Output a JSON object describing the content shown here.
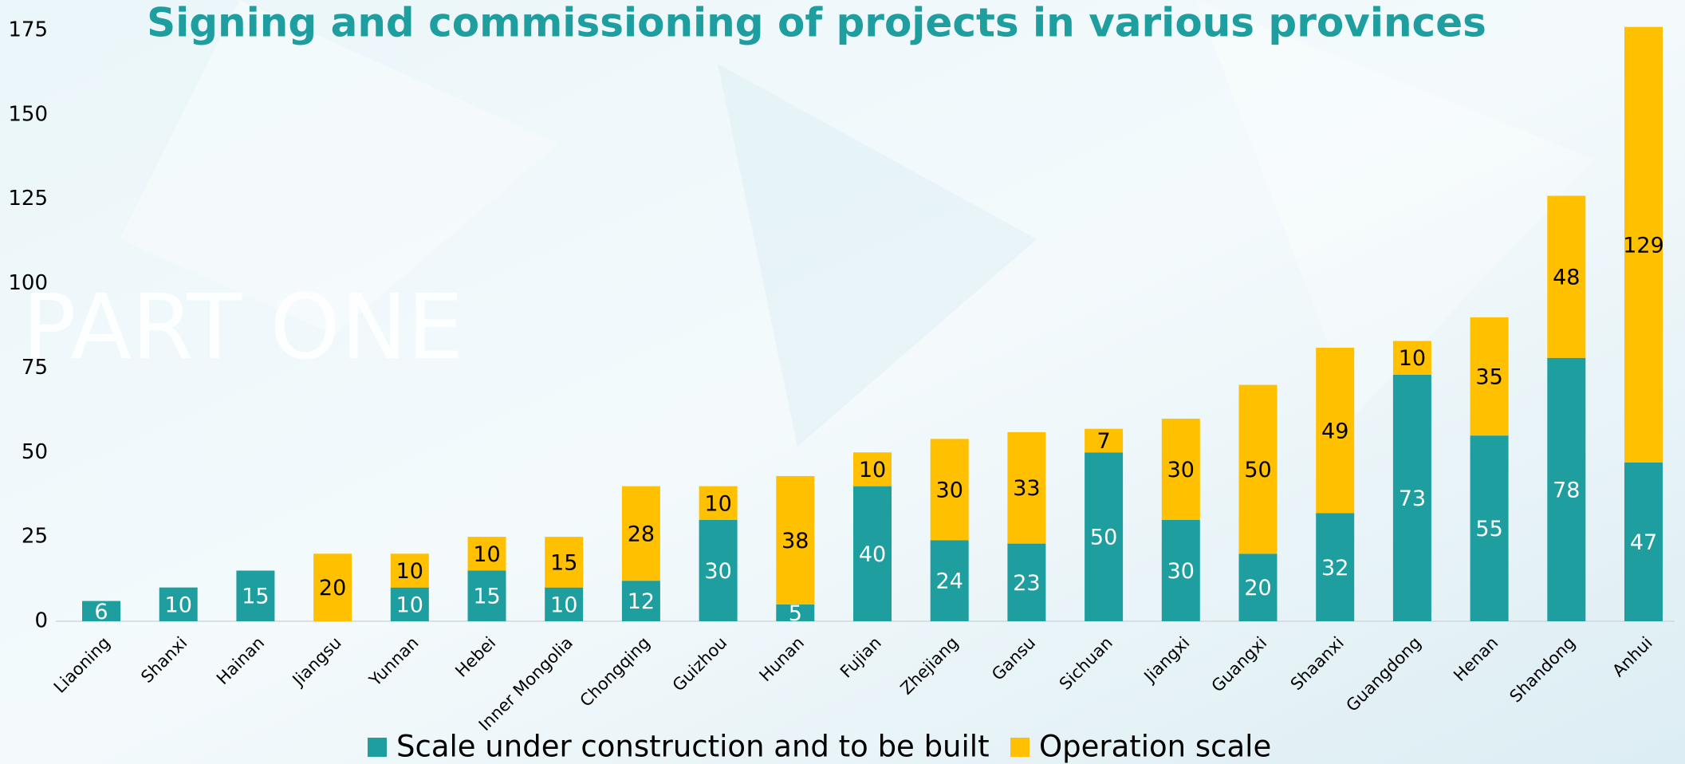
{
  "chart_data": {
    "type": "bar",
    "stacked": true,
    "title": "Signing and commissioning of projects in various provinces",
    "watermark": "PART ONE",
    "categories": [
      "Liaoning",
      "Shanxi",
      "Hainan",
      "Jiangsu",
      "Yunnan",
      "Hebei",
      "Inner Mongolia",
      "Chongqing",
      "Guizhou",
      "Hunan",
      "Fujian",
      "Zhejiang",
      "Gansu",
      "Sichuan",
      "Jiangxi",
      "Guangxi",
      "Shaanxi",
      "Guangdong",
      "Henan",
      "Shandong",
      "Anhui"
    ],
    "series": [
      {
        "name": "Scale under construction and to be built",
        "color": "#1f9ea0",
        "label_color": "#ffffff",
        "values": [
          6,
          10,
          15,
          null,
          10,
          15,
          10,
          12,
          30,
          5,
          40,
          24,
          23,
          50,
          30,
          20,
          32,
          73,
          55,
          78,
          47
        ]
      },
      {
        "name": "Operation scale",
        "color": "#ffc000",
        "label_color": "#000000",
        "values": [
          null,
          null,
          null,
          20,
          10,
          10,
          15,
          28,
          10,
          38,
          10,
          30,
          33,
          7,
          30,
          50,
          49,
          10,
          35,
          48,
          129
        ]
      }
    ],
    "ylim": [
      0,
      175
    ],
    "yticks": [
      0,
      25,
      50,
      75,
      100,
      125,
      150,
      175
    ],
    "grid": false,
    "legend": "bottom"
  }
}
